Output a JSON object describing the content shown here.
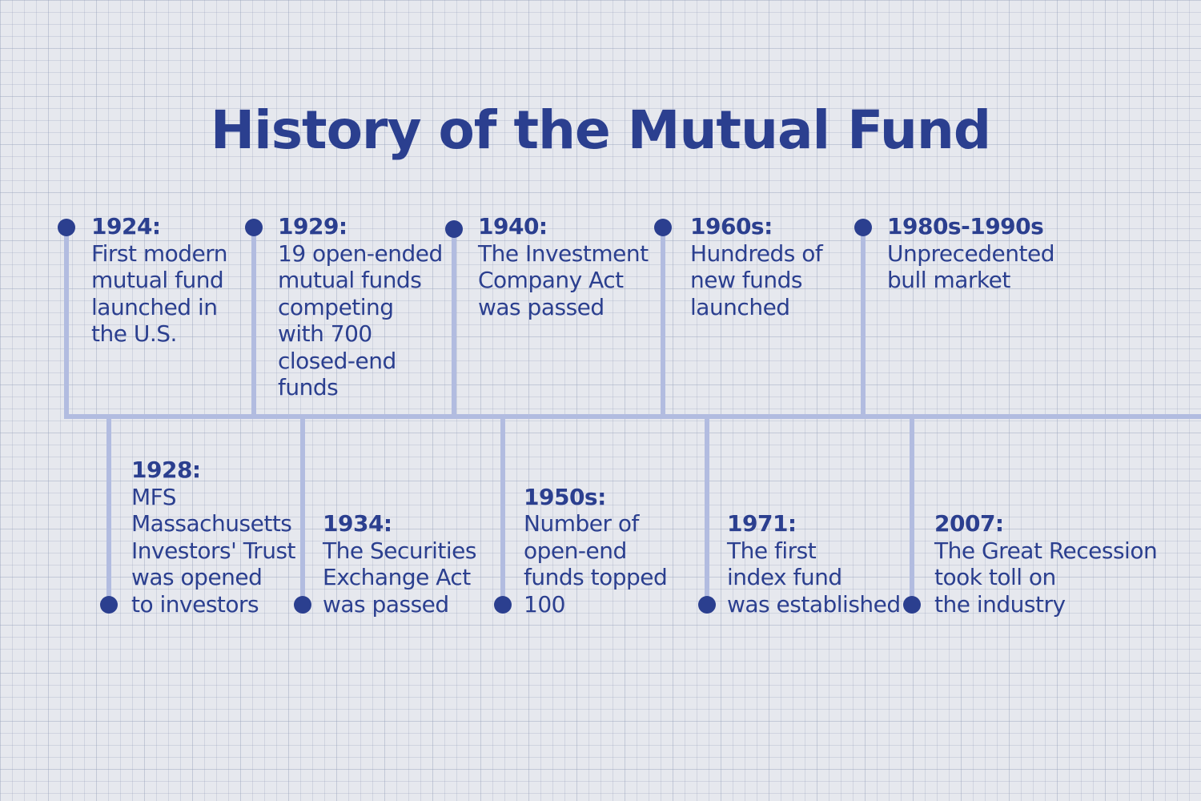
{
  "title": "History of the Mutual Fund",
  "colors": {
    "primary": "#2b3f8f",
    "line": "#b2bce0",
    "background": "#e6e8ee"
  },
  "events": [
    {
      "label": "1924:",
      "lines": [
        "First modern",
        "mutual fund",
        "launched in",
        "the U.S."
      ]
    },
    {
      "label": "1928:",
      "lines": [
        "MFS",
        "Massachusetts",
        "Investors' Trust",
        "was opened",
        "to investors"
      ]
    },
    {
      "label": "1929:",
      "lines": [
        "19 open-ended",
        "mutual funds",
        "competing",
        "with 700",
        "closed-end",
        "funds"
      ]
    },
    {
      "label": "1934:",
      "lines": [
        "The Securities",
        "Exchange Act",
        "was passed"
      ]
    },
    {
      "label": "1940:",
      "lines": [
        "The Investment",
        "Company Act",
        "was passed"
      ]
    },
    {
      "label": "1950s:",
      "lines": [
        "Number of",
        "open-end",
        "funds topped",
        "100"
      ]
    },
    {
      "label": "1960s:",
      "lines": [
        "Hundreds of",
        "new funds",
        "launched"
      ]
    },
    {
      "label": "1971:",
      "lines": [
        "The first",
        "index fund",
        "was established"
      ]
    },
    {
      "label": "1980s-1990s",
      "lines": [
        "Unprecedented",
        "bull market"
      ]
    },
    {
      "label": "2007:",
      "lines": [
        "The Great Recession",
        "took toll on",
        "the industry"
      ]
    }
  ]
}
